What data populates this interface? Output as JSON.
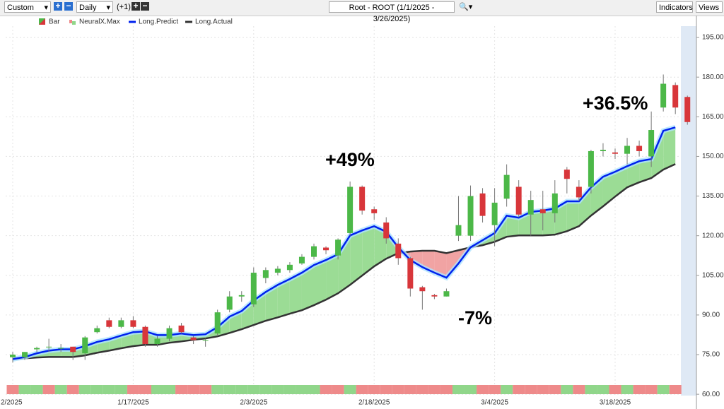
{
  "toolbar": {
    "period": "Custom",
    "interval": "Daily",
    "offset": "(+1)",
    "symbol_title": "Root - ROOT (1/1/2025 - 3/26/2025)",
    "indicators": "Indicators",
    "views": "Views"
  },
  "chart_data": {
    "type": "candlestick",
    "categories": [
      "2/2025",
      null,
      null,
      null,
      null,
      null,
      null,
      null,
      null,
      null,
      "1/17/2025",
      null,
      null,
      null,
      null,
      null,
      null,
      null,
      null,
      null,
      "2/3/2025",
      null,
      null,
      null,
      null,
      null,
      null,
      null,
      null,
      null,
      "2/18/2025",
      null,
      null,
      null,
      null,
      null,
      null,
      null,
      null,
      null,
      "3/4/2025",
      null,
      null,
      null,
      null,
      null,
      null,
      null,
      null,
      null,
      "3/18/2025",
      null,
      null,
      null,
      null,
      null,
      null
    ],
    "series": [
      {
        "name": "Bar",
        "up_color": "#4cb848",
        "down_color": "#d8363a",
        "open": [
          74,
          74,
          77,
          78,
          77.5,
          78,
          75.5,
          83.5,
          88,
          85.5,
          88,
          85.5,
          79,
          81,
          86,
          81.5,
          80.5,
          83,
          92,
          97,
          94,
          104,
          106,
          107,
          109.5,
          112,
          115.5,
          112.5,
          121,
          138.5,
          130,
          125,
          117,
          111.5,
          100.5,
          97.5,
          97,
          120,
          120,
          136,
          124,
          134,
          138.5,
          128,
          130,
          128.5,
          145,
          138.5,
          138.5,
          152,
          151.5,
          151,
          154,
          150,
          168.5,
          177,
          172.5
        ],
        "high": [
          76,
          76,
          78,
          81,
          79,
          78,
          82,
          86,
          89,
          89,
          89.5,
          86,
          82,
          86,
          87,
          82,
          81,
          92,
          99,
          99,
          108,
          108,
          108.5,
          110,
          113,
          117,
          116,
          119,
          140.5,
          139,
          131,
          127,
          119,
          112,
          101,
          98,
          100,
          135,
          139,
          138,
          138,
          147,
          141,
          137,
          137,
          141,
          146,
          141,
          152.5,
          155,
          153,
          157,
          156,
          167,
          181,
          178,
          173
        ],
        "low": [
          72,
          73,
          76,
          76,
          76,
          73,
          73,
          83,
          85,
          85,
          85,
          78,
          78,
          80,
          83,
          79,
          78,
          82,
          91,
          95,
          93,
          102,
          105,
          106,
          109,
          111,
          113,
          111,
          120,
          128,
          126,
          117,
          109,
          97,
          92,
          96,
          97,
          118,
          118,
          125,
          116,
          131,
          127,
          120,
          122,
          125,
          136,
          133,
          136,
          150,
          149,
          147,
          150,
          146,
          167,
          166,
          162
        ],
        "close": [
          75,
          76,
          77.5,
          78,
          77.5,
          76,
          81.5,
          85,
          85.5,
          88,
          85.5,
          79,
          81,
          85,
          83.5,
          80.5,
          80.5,
          91,
          97,
          97.5,
          106,
          107,
          107.5,
          109,
          112,
          116,
          114.5,
          118.5,
          138.5,
          129.5,
          128.5,
          119,
          111.5,
          100,
          99,
          97,
          99,
          124,
          135,
          127.5,
          132.5,
          143,
          128,
          133.5,
          128.5,
          136,
          141.5,
          134.5,
          152,
          152.5,
          151,
          154,
          152,
          160,
          177.5,
          168.5,
          163
        ]
      },
      {
        "name": "NeuralX.Max",
        "colors": [
          "#ee8a8a",
          "#90d68a",
          "#90d68a",
          "#ee8a8a",
          "#90d68a",
          "#ee8a8a",
          "#90d68a",
          "#90d68a",
          "#90d68a",
          "#90d68a",
          "#ee8a8a",
          "#ee8a8a",
          "#90d68a",
          "#90d68a",
          "#ee8a8a",
          "#ee8a8a",
          "#ee8a8a",
          "#90d68a",
          "#90d68a",
          "#90d68a",
          "#90d68a",
          "#90d68a",
          "#90d68a",
          "#90d68a",
          "#90d68a",
          "#90d68a",
          "#ee8a8a",
          "#ee8a8a",
          "#90d68a",
          "#ee8a8a",
          "#ee8a8a",
          "#ee8a8a",
          "#ee8a8a",
          "#ee8a8a",
          "#ee8a8a",
          "#ee8a8a",
          "#ee8a8a",
          "#90d68a",
          "#90d68a",
          "#ee8a8a",
          "#ee8a8a",
          "#90d68a",
          "#ee8a8a",
          "#ee8a8a",
          "#ee8a8a",
          "#ee8a8a",
          "#90d68a",
          "#ee8a8a",
          "#90d68a",
          "#90d68a",
          "#ee8a8a",
          "#90d68a",
          "#ee8a8a",
          "#ee8a8a",
          "#90d68a",
          "#ee8a8a",
          null
        ]
      },
      {
        "name": "Long.Predict",
        "color": "#0022ee",
        "values": [
          73.3,
          74.1,
          75.5,
          76.5,
          77,
          77,
          78.2,
          79.8,
          80.8,
          82.2,
          83.5,
          83.8,
          82.4,
          82.4,
          83,
          82.4,
          82.7,
          85.4,
          89.4,
          91.5,
          95.5,
          98.7,
          101.4,
          103.6,
          106,
          108.9,
          110.8,
          113,
          120.1,
          122,
          123.6,
          121.5,
          115.6,
          110.8,
          108.1,
          106,
          104.1,
          109.5,
          115.6,
          118.3,
          121,
          127.6,
          126.8,
          129,
          129.5,
          130.3,
          133,
          133,
          138.3,
          142.3,
          144.2,
          146.3,
          148.2,
          149,
          159.7,
          161,
          null
        ]
      },
      {
        "name": "Long.Actual",
        "color": "#333333",
        "values": [
          73.3,
          73.6,
          73.9,
          74.1,
          74.1,
          74.1,
          74.7,
          75.7,
          76.5,
          77.4,
          78.2,
          78.7,
          78.7,
          79.5,
          80,
          80.6,
          81.1,
          81.9,
          83.2,
          84.6,
          86.2,
          87.8,
          89.1,
          90.5,
          91.8,
          93.7,
          95.8,
          98.2,
          101.4,
          104.9,
          108.4,
          111.3,
          113.4,
          114,
          114.3,
          114.3,
          113.4,
          114.5,
          115.6,
          116.4,
          117.7,
          119.6,
          120.1,
          120.1,
          120.1,
          120.4,
          121.7,
          123.6,
          127.6,
          131.1,
          134.8,
          138.3,
          140.2,
          141.8,
          145,
          147.1,
          null
        ]
      }
    ],
    "fill_up_color": "#9bdc95",
    "fill_down_color": "#f1a3a3",
    "annotations": [
      "+49%",
      "-7%",
      "+36.5%"
    ],
    "ylim": [
      59.5,
      199.3
    ],
    "yticks": [
      {
        "value": 60,
        "label": "60.00"
      },
      {
        "value": 75,
        "label": "75.00"
      },
      {
        "value": 90,
        "label": "90.00"
      },
      {
        "value": 105,
        "label": "105.00"
      },
      {
        "value": 120,
        "label": "120.00"
      },
      {
        "value": 135,
        "label": "135.00"
      },
      {
        "value": 150,
        "label": "150.00"
      },
      {
        "value": 165,
        "label": "165.00"
      },
      {
        "value": 180,
        "label": "180.00"
      },
      {
        "value": 195,
        "label": "195.00"
      }
    ],
    "grid": true
  }
}
